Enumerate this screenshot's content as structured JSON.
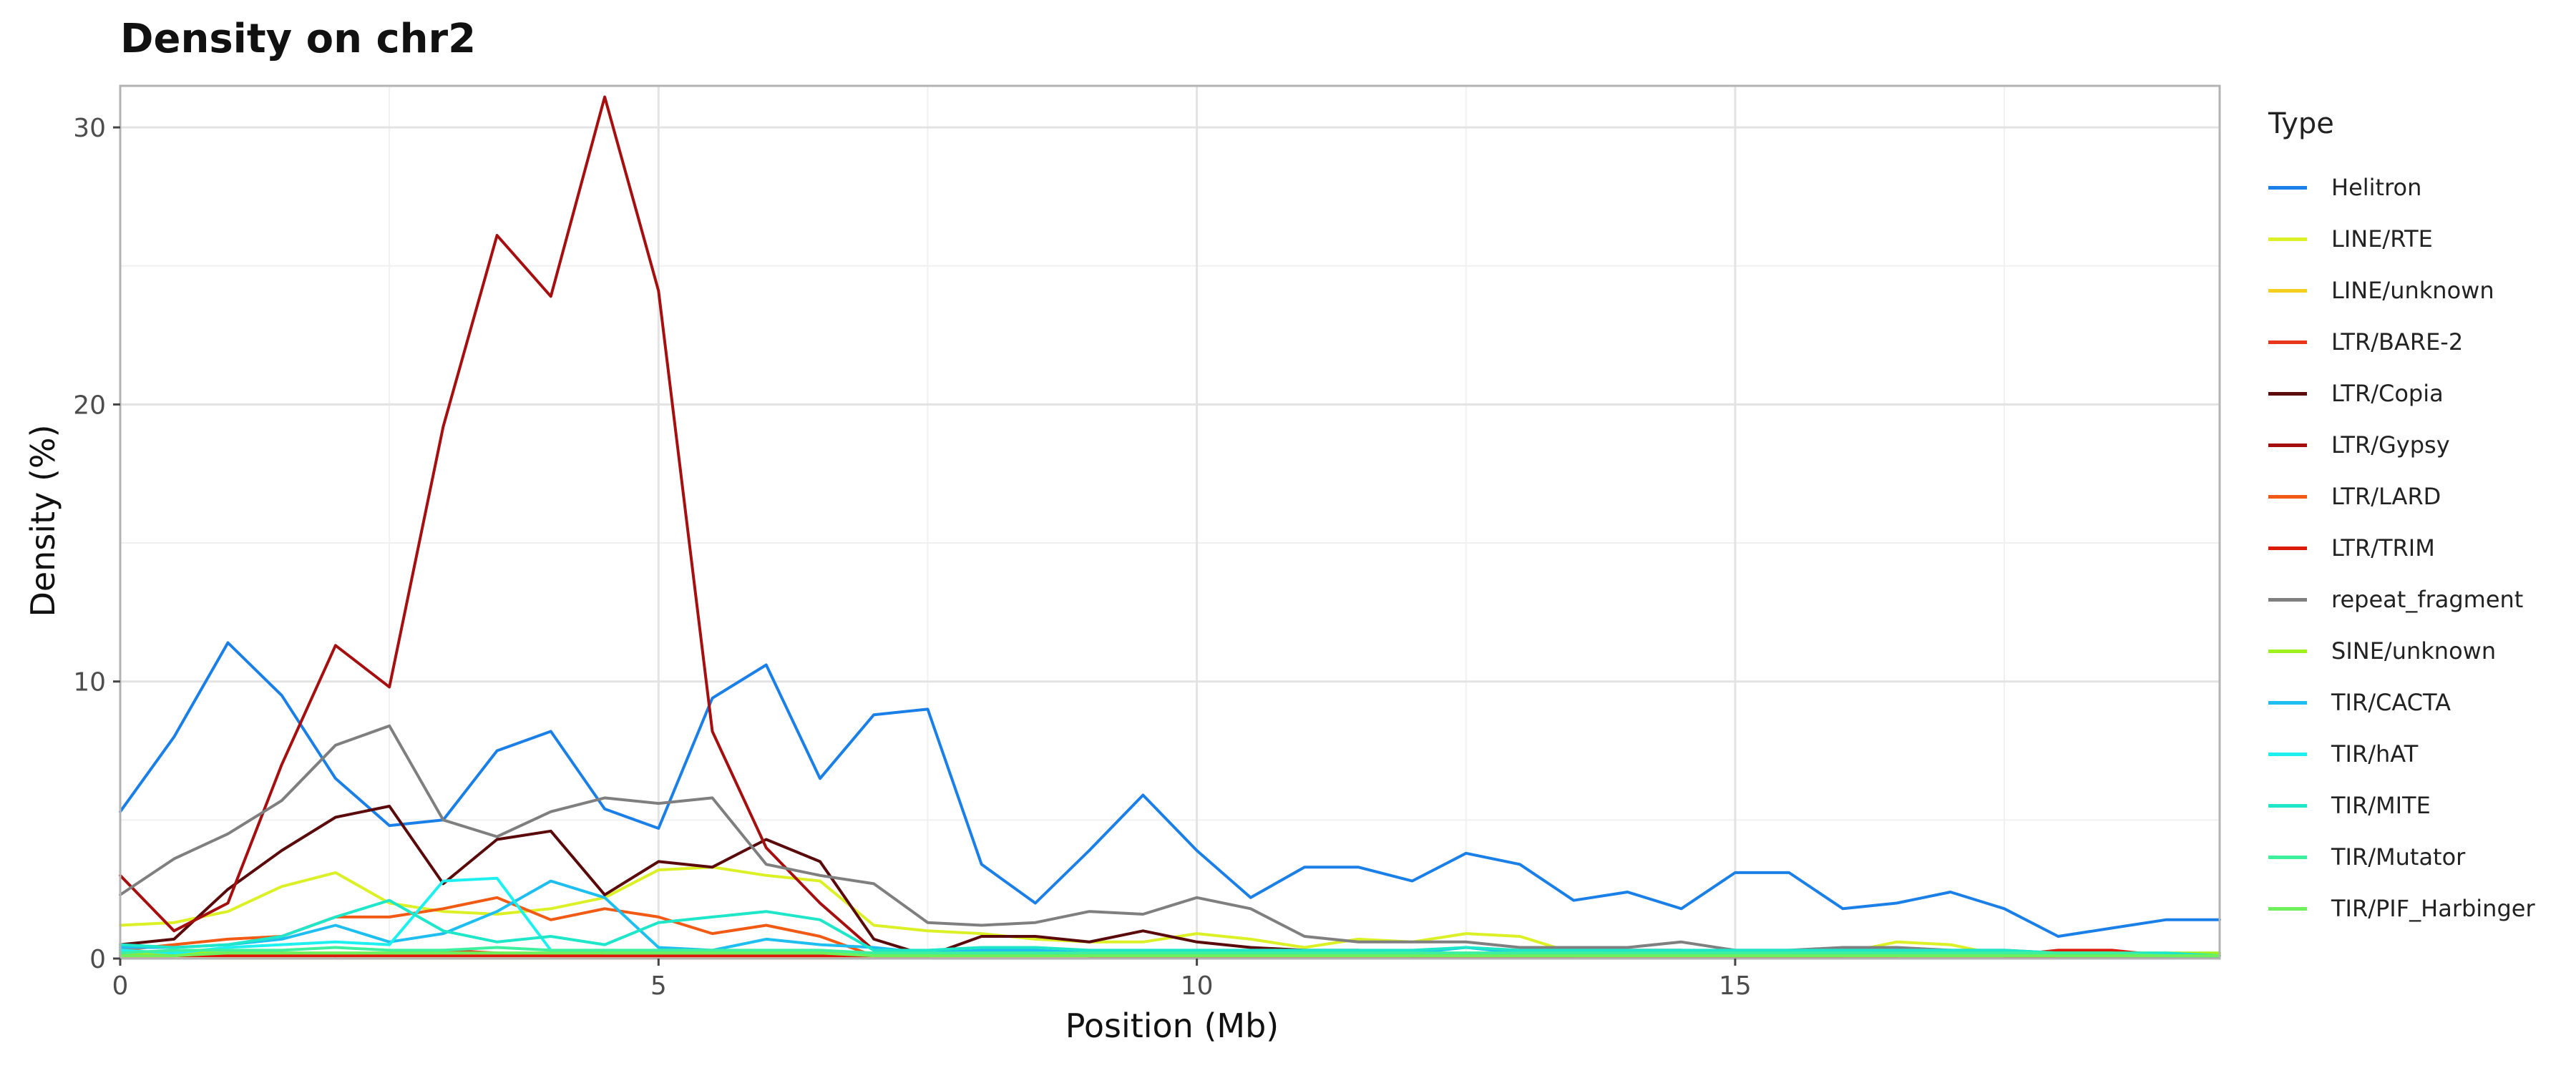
{
  "chart_data": {
    "type": "line",
    "title": "Density on chr2",
    "xlabel": "Position (Mb)",
    "ylabel": "Density (%)",
    "xlim": [
      0,
      19.5
    ],
    "ylim": [
      0,
      31.5
    ],
    "xticks": [
      "0",
      "5",
      "10",
      "15"
    ],
    "yticks": [
      "0",
      "10",
      "20",
      "30"
    ],
    "grid": true,
    "legend_title": "Type",
    "legend_position": "right",
    "x": [
      0,
      0.5,
      1,
      1.5,
      2,
      2.5,
      3,
      3.5,
      4,
      4.5,
      5,
      5.5,
      6,
      6.5,
      7,
      7.5,
      8,
      8.5,
      9,
      9.5,
      10,
      10.5,
      11,
      11.5,
      12,
      12.5,
      13,
      13.5,
      14,
      14.5,
      15,
      15.5,
      16,
      16.5,
      17,
      17.5,
      18,
      18.5,
      19,
      19.5
    ],
    "series": [
      {
        "name": "Helitron",
        "color": "#1a7fe6",
        "values": [
          5.3,
          8.0,
          11.4,
          9.5,
          6.5,
          4.8,
          5.0,
          7.5,
          8.2,
          5.4,
          4.7,
          9.4,
          10.6,
          6.5,
          8.8,
          9.0,
          3.4,
          2.0,
          3.9,
          5.9,
          3.9,
          2.2,
          3.3,
          3.3,
          2.8,
          3.8,
          3.4,
          2.1,
          2.4,
          1.8,
          3.1,
          3.1,
          1.8,
          2.0,
          2.4,
          1.8,
          0.8,
          1.1,
          1.4,
          1.4
        ]
      },
      {
        "name": "LINE/RTE",
        "color": "#dcf026",
        "values": [
          1.2,
          1.3,
          1.7,
          2.6,
          3.1,
          2.0,
          1.7,
          1.6,
          1.8,
          2.2,
          3.2,
          3.3,
          3.0,
          2.8,
          1.2,
          1.0,
          0.9,
          0.7,
          0.6,
          0.6,
          0.9,
          0.7,
          0.4,
          0.7,
          0.6,
          0.9,
          0.8,
          0.2,
          0.2,
          0.1,
          0.2,
          0.3,
          0.2,
          0.6,
          0.5,
          0.1,
          0.1,
          0.1,
          0.1,
          0.1
        ]
      },
      {
        "name": "LINE/unknown",
        "color": "#f4cf1e",
        "values": [
          0.1,
          0.1,
          0.1,
          0.1,
          0.1,
          0.1,
          0.1,
          0.1,
          0.1,
          0.1,
          0.1,
          0.1,
          0.1,
          0.1,
          0.1,
          0.1,
          0.1,
          0.1,
          0.1,
          0.1,
          0.1,
          0.1,
          0.1,
          0.1,
          0.1,
          0.1,
          0.1,
          0.1,
          0.1,
          0.1,
          0.1,
          0.1,
          0.1,
          0.1,
          0.1,
          0.1,
          0.1,
          0.1,
          0.1,
          0.1
        ]
      },
      {
        "name": "LTR/BARE-2",
        "color": "#e8361a",
        "values": [
          0.1,
          0.1,
          0.2,
          0.2,
          0.1,
          0.2,
          0.3,
          0.2,
          0.1,
          0.1,
          0.1,
          0.1,
          0.1,
          0.1,
          0.1,
          0.1,
          0.1,
          0.1,
          0.1,
          0.1,
          0.1,
          0.1,
          0.1,
          0.1,
          0.1,
          0.1,
          0.1,
          0.1,
          0.1,
          0.1,
          0.1,
          0.1,
          0.1,
          0.1,
          0.1,
          0.1,
          0.1,
          0.1,
          0.1,
          0.1
        ]
      },
      {
        "name": "LTR/Copia",
        "color": "#5a0a0a",
        "values": [
          0.5,
          0.7,
          2.5,
          3.9,
          5.1,
          5.5,
          2.7,
          4.3,
          4.6,
          2.3,
          3.5,
          3.3,
          4.3,
          3.5,
          0.7,
          0.1,
          0.8,
          0.8,
          0.6,
          1.0,
          0.6,
          0.4,
          0.3,
          0.3,
          0.1,
          0.1,
          0.1,
          0.1,
          0.3,
          0.3,
          0.1,
          0.1,
          0.1,
          0.3,
          0.2,
          0.1,
          0.1,
          0.1,
          0.1,
          0.1
        ]
      },
      {
        "name": "LTR/Gypsy",
        "color": "#a50f0f",
        "values": [
          3.0,
          1.0,
          2.0,
          7.0,
          11.3,
          9.8,
          19.2,
          26.1,
          23.9,
          31.1,
          24.1,
          8.2,
          4.0,
          2.0,
          0.3,
          0.2,
          0.2,
          0.3,
          0.1,
          0.1,
          0.1,
          0.1,
          0.1,
          0.1,
          0.1,
          0.1,
          0.1,
          0.1,
          0.1,
          0.1,
          0.1,
          0.1,
          0.1,
          0.1,
          0.1,
          0.1,
          0.1,
          0.1,
          0.1,
          0.1
        ]
      },
      {
        "name": "LTR/LARD",
        "color": "#f05a14",
        "values": [
          0.3,
          0.5,
          0.7,
          0.8,
          1.5,
          1.5,
          1.8,
          2.2,
          1.4,
          1.8,
          1.5,
          0.9,
          1.2,
          0.8,
          0.1,
          0.1,
          0.2,
          0.2,
          0.1,
          0.1,
          0.1,
          0.1,
          0.1,
          0.1,
          0.1,
          0.1,
          0.1,
          0.1,
          0.1,
          0.1,
          0.1,
          0.1,
          0.1,
          0.1,
          0.1,
          0.1,
          0.1,
          0.1,
          0.1,
          0.1
        ]
      },
      {
        "name": "LTR/TRIM",
        "color": "#dc1a0a",
        "values": [
          0.1,
          0.1,
          0.1,
          0.1,
          0.1,
          0.1,
          0.1,
          0.1,
          0.1,
          0.1,
          0.1,
          0.1,
          0.1,
          0.1,
          0.1,
          0.1,
          0.1,
          0.1,
          0.1,
          0.1,
          0.1,
          0.1,
          0.1,
          0.1,
          0.1,
          0.1,
          0.1,
          0.1,
          0.1,
          0.1,
          0.1,
          0.1,
          0.1,
          0.1,
          0.3,
          0.1,
          0.3,
          0.3,
          0.1,
          0.1
        ]
      },
      {
        "name": "repeat_fragment",
        "color": "#7f7f7f",
        "values": [
          2.3,
          3.6,
          4.5,
          5.7,
          7.7,
          8.4,
          5.0,
          4.4,
          5.3,
          5.8,
          5.6,
          5.8,
          3.4,
          3.0,
          2.7,
          1.3,
          1.2,
          1.3,
          1.7,
          1.6,
          2.2,
          1.8,
          0.8,
          0.6,
          0.6,
          0.6,
          0.4,
          0.4,
          0.4,
          0.6,
          0.3,
          0.3,
          0.4,
          0.4,
          0.3,
          0.3,
          0.2,
          0.1,
          0.1,
          0.1
        ]
      },
      {
        "name": "SINE/unknown",
        "color": "#a0f01e",
        "values": [
          0.2,
          0.2,
          0.2,
          0.2,
          0.2,
          0.2,
          0.2,
          0.2,
          0.2,
          0.2,
          0.2,
          0.2,
          0.2,
          0.2,
          0.2,
          0.2,
          0.2,
          0.2,
          0.2,
          0.2,
          0.2,
          0.2,
          0.2,
          0.2,
          0.2,
          0.2,
          0.2,
          0.2,
          0.2,
          0.2,
          0.2,
          0.2,
          0.2,
          0.2,
          0.2,
          0.2,
          0.2,
          0.2,
          0.2,
          0.2
        ]
      },
      {
        "name": "TIR/CACTA",
        "color": "#1ebef0",
        "values": [
          0.4,
          0.4,
          0.5,
          0.7,
          1.2,
          0.6,
          0.9,
          1.7,
          2.8,
          2.2,
          0.4,
          0.3,
          0.7,
          0.5,
          0.4,
          0.2,
          0.3,
          0.3,
          0.2,
          0.2,
          0.2,
          0.2,
          0.2,
          0.2,
          0.2,
          0.4,
          0.2,
          0.2,
          0.2,
          0.2,
          0.2,
          0.2,
          0.2,
          0.2,
          0.2,
          0.2,
          0.1,
          0.1,
          0.1,
          0.1
        ]
      },
      {
        "name": "TIR/hAT",
        "color": "#1ef0f0",
        "values": [
          0.3,
          0.2,
          0.4,
          0.5,
          0.6,
          0.5,
          2.8,
          2.9,
          0.3,
          0.2,
          0.2,
          0.2,
          0.2,
          0.2,
          0.2,
          0.2,
          0.2,
          0.2,
          0.2,
          0.2,
          0.2,
          0.2,
          0.2,
          0.2,
          0.2,
          0.2,
          0.2,
          0.2,
          0.2,
          0.2,
          0.2,
          0.2,
          0.2,
          0.2,
          0.2,
          0.2,
          0.2,
          0.2,
          0.1,
          0.1
        ]
      },
      {
        "name": "TIR/MITE",
        "color": "#1ee6c8",
        "values": [
          0.5,
          0.4,
          0.5,
          0.8,
          1.5,
          2.1,
          1.0,
          0.6,
          0.8,
          0.5,
          1.3,
          1.5,
          1.7,
          1.4,
          0.3,
          0.3,
          0.4,
          0.4,
          0.3,
          0.3,
          0.3,
          0.3,
          0.3,
          0.3,
          0.3,
          0.4,
          0.3,
          0.3,
          0.3,
          0.3,
          0.3,
          0.3,
          0.3,
          0.3,
          0.3,
          0.3,
          0.2,
          0.2,
          0.2,
          0.1
        ]
      },
      {
        "name": "TIR/Mutator",
        "color": "#3ef09e",
        "values": [
          0.2,
          0.3,
          0.3,
          0.3,
          0.4,
          0.3,
          0.3,
          0.4,
          0.3,
          0.3,
          0.3,
          0.3,
          0.3,
          0.3,
          0.2,
          0.2,
          0.2,
          0.2,
          0.2,
          0.2,
          0.2,
          0.2,
          0.2,
          0.2,
          0.2,
          0.2,
          0.2,
          0.2,
          0.2,
          0.2,
          0.2,
          0.2,
          0.2,
          0.2,
          0.2,
          0.2,
          0.2,
          0.2,
          0.1,
          0.1
        ]
      },
      {
        "name": "TIR/PIF_Harbinger",
        "color": "#6ef05a",
        "values": [
          0.1,
          0.1,
          0.2,
          0.2,
          0.2,
          0.2,
          0.2,
          0.2,
          0.2,
          0.2,
          0.2,
          0.2,
          0.2,
          0.2,
          0.1,
          0.1,
          0.1,
          0.1,
          0.1,
          0.1,
          0.1,
          0.1,
          0.1,
          0.1,
          0.1,
          0.1,
          0.1,
          0.1,
          0.1,
          0.1,
          0.1,
          0.1,
          0.1,
          0.1,
          0.1,
          0.1,
          0.1,
          0.1,
          0.1,
          0.1
        ]
      }
    ]
  }
}
